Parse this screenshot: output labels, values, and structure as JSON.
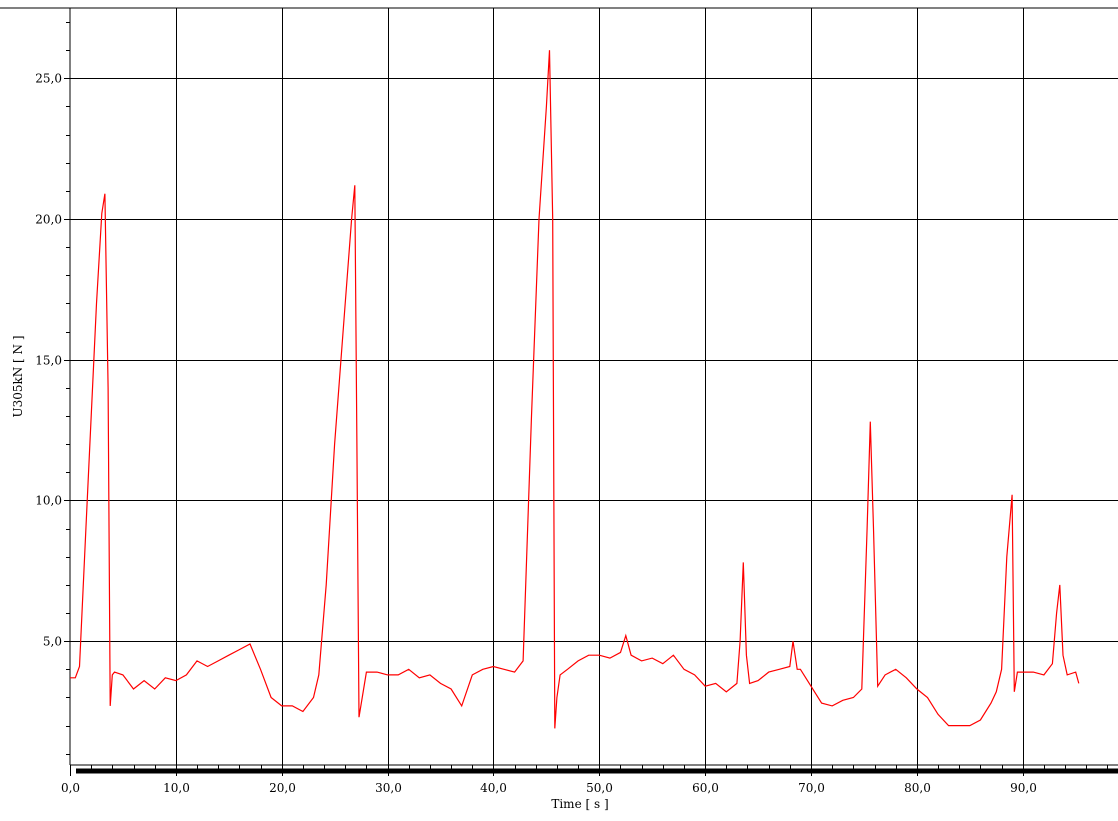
{
  "chart_data": {
    "type": "line",
    "title": "",
    "xlabel": "Time [ s ]",
    "ylabel": "U305kN [ N ]",
    "xlim": [
      0,
      99
    ],
    "ylim": [
      0.6,
      27.5
    ],
    "grid": true,
    "legend": "none",
    "x_ticks": [
      0,
      10,
      20,
      30,
      40,
      50,
      60,
      70,
      80,
      90
    ],
    "x_tick_labels": [
      "0,0",
      "10,0",
      "20,0",
      "30,0",
      "40,0",
      "50,0",
      "60,0",
      "70,0",
      "80,0",
      "90,0"
    ],
    "y_ticks": [
      5,
      10,
      15,
      20,
      25
    ],
    "y_tick_labels": [
      "5,0",
      "10,0",
      "15,0",
      "20,0",
      "25,0"
    ],
    "series": [
      {
        "color": "#ff0000",
        "x": [
          0.0,
          0.5,
          0.9,
          1.5,
          2.5,
          3.0,
          3.3,
          3.6,
          3.8,
          4.0,
          4.2,
          5.0,
          6.0,
          7.0,
          8.0,
          9.0,
          10.0,
          11.0,
          12.0,
          13.0,
          14.0,
          15.0,
          16.0,
          17.0,
          18.0,
          19.0,
          20.0,
          21.0,
          22.0,
          23.0,
          23.5,
          24.2,
          25.0,
          26.0,
          26.6,
          26.9,
          27.1,
          27.3,
          28.0,
          29.0,
          30.0,
          31.0,
          32.0,
          33.0,
          34.0,
          35.0,
          36.0,
          37.0,
          38.0,
          39.0,
          40.0,
          41.0,
          42.0,
          42.8,
          43.6,
          44.3,
          45.0,
          45.3,
          45.6,
          45.8,
          46.0,
          46.3,
          47.0,
          48.0,
          49.0,
          50.0,
          51.0,
          52.0,
          52.5,
          53.0,
          54.0,
          55.0,
          56.0,
          57.0,
          58.0,
          59.0,
          60.0,
          61.0,
          62.0,
          63.0,
          63.3,
          63.6,
          63.9,
          64.2,
          65.0,
          66.0,
          67.0,
          68.0,
          68.3,
          68.7,
          69.0,
          70.0,
          71.0,
          72.0,
          73.0,
          74.0,
          74.8,
          75.3,
          75.6,
          75.9,
          76.3,
          77.0,
          78.0,
          79.0,
          80.0,
          81.0,
          82.0,
          83.0,
          84.0,
          85.0,
          86.0,
          87.0,
          87.5,
          88.0,
          88.5,
          89.0,
          89.2,
          89.5,
          90.0,
          91.0,
          92.0,
          92.8,
          93.2,
          93.5,
          93.8,
          94.2,
          95.0,
          95.3
        ],
        "values": [
          3.7,
          3.7,
          4.1,
          9.0,
          17.0,
          20.2,
          20.9,
          14.0,
          2.7,
          3.8,
          3.9,
          3.8,
          3.3,
          3.6,
          3.3,
          3.7,
          3.6,
          3.8,
          4.3,
          4.1,
          4.3,
          4.5,
          4.7,
          4.9,
          4.0,
          3.0,
          2.7,
          2.7,
          2.5,
          3.0,
          3.8,
          7.0,
          12.0,
          17.0,
          20.0,
          21.2,
          12.0,
          2.3,
          3.9,
          3.9,
          3.8,
          3.8,
          4.0,
          3.7,
          3.8,
          3.5,
          3.3,
          2.7,
          3.8,
          4.0,
          4.1,
          4.0,
          3.9,
          4.3,
          13.0,
          20.0,
          24.0,
          26.0,
          20.0,
          1.9,
          3.0,
          3.8,
          4.0,
          4.3,
          4.5,
          4.5,
          4.4,
          4.6,
          5.2,
          4.5,
          4.3,
          4.4,
          4.2,
          4.5,
          4.0,
          3.8,
          3.4,
          3.5,
          3.2,
          3.5,
          5.0,
          7.8,
          4.5,
          3.5,
          3.6,
          3.9,
          4.0,
          4.1,
          5.0,
          4.0,
          4.0,
          3.4,
          2.8,
          2.7,
          2.9,
          3.0,
          3.3,
          9.0,
          12.8,
          9.0,
          3.4,
          3.8,
          4.0,
          3.7,
          3.3,
          3.0,
          2.4,
          2.0,
          2.0,
          2.0,
          2.2,
          2.8,
          3.2,
          4.0,
          8.0,
          10.2,
          3.2,
          3.9,
          3.9,
          3.9,
          3.8,
          4.2,
          6.0,
          7.0,
          4.5,
          3.8,
          3.9,
          3.5
        ]
      }
    ]
  }
}
